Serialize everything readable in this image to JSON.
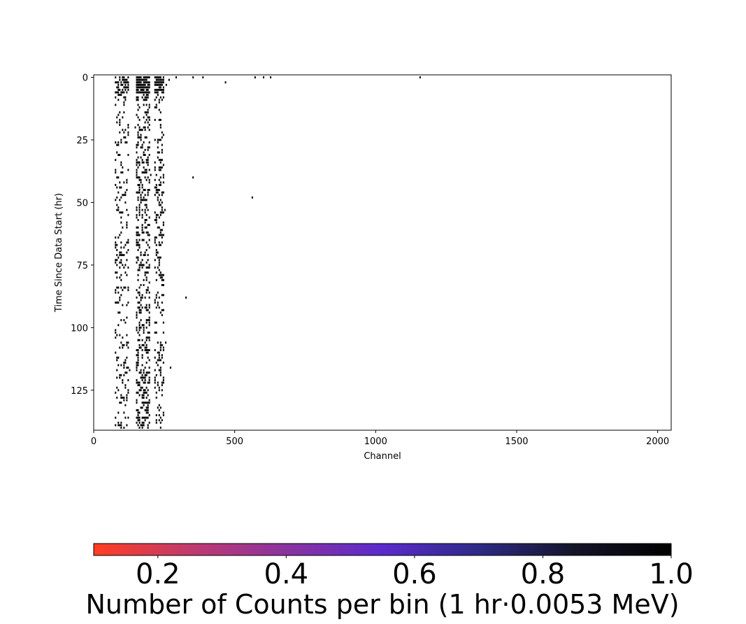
{
  "chart_data": {
    "type": "heatmap",
    "title": "",
    "xlabel": "Channel",
    "ylabel": "Time Since Data Start (hr)",
    "xlim": [
      0,
      2048
    ],
    "ylim": [
      141,
      -1
    ],
    "x_ticks": [
      0,
      500,
      1000,
      1500,
      2000
    ],
    "y_ticks": [
      0,
      25,
      50,
      75,
      100,
      125
    ],
    "colorbar": {
      "label": "Number of Counts per bin (1 hr·0.0053 MeV)",
      "range": [
        0.1,
        1.0
      ],
      "ticks": [
        0.2,
        0.4,
        0.6,
        0.8,
        1.0
      ],
      "tick_labels": [
        "0.2",
        "0.4",
        "0.6",
        "0.8",
        "1.0"
      ],
      "colors": [
        "#ff3e22",
        "#c13a6e",
        "#8a33a0",
        "#5a2bcc",
        "#2e2a86",
        "#141428",
        "#000000"
      ]
    },
    "bin_channels": 5,
    "occupied_channel_range": [
      75,
      250
    ],
    "dense_columns": [
      {
        "channel_min": 75,
        "channel_max": 120,
        "row_density": 0.18
      },
      {
        "channel_min": 150,
        "channel_max": 195,
        "row_density": 0.3
      },
      {
        "channel_min": 215,
        "channel_max": 245,
        "row_density": 0.24
      }
    ],
    "dense_hours": [
      0,
      6
    ],
    "sparse_points": [
      {
        "channel": 255,
        "hour": 3
      },
      {
        "channel": 265,
        "hour": 1
      },
      {
        "channel": 290,
        "hour": 0
      },
      {
        "channel": 350,
        "hour": 0
      },
      {
        "channel": 385,
        "hour": 0
      },
      {
        "channel": 465,
        "hour": 2
      },
      {
        "channel": 570,
        "hour": 0
      },
      {
        "channel": 600,
        "hour": 0
      },
      {
        "channel": 625,
        "hour": 0
      },
      {
        "channel": 1155,
        "hour": 0
      },
      {
        "channel": 350,
        "hour": 40
      },
      {
        "channel": 560,
        "hour": 48
      },
      {
        "channel": 325,
        "hour": 88
      },
      {
        "channel": 270,
        "hour": 116
      },
      {
        "channel": 250,
        "hour": 53
      },
      {
        "channel": 253,
        "hour": 106
      }
    ],
    "count_value": 1.0
  }
}
